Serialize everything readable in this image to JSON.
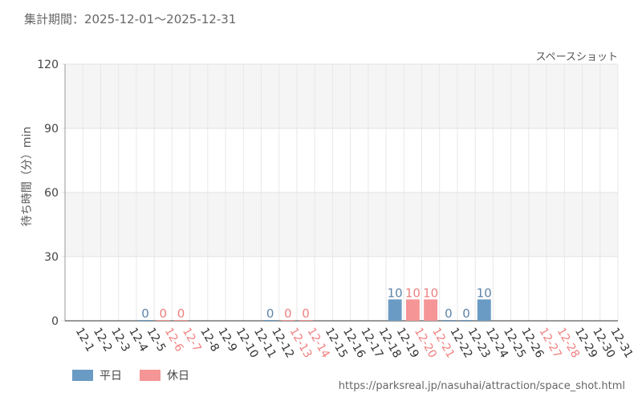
{
  "header": {
    "period": "集計期間：2025-12-01～2025-12-31"
  },
  "source_url": "https://parksreal.jp/nasuhai/attraction/space_shot.html",
  "colors": {
    "weekday": "#6a9bc4",
    "holiday": "#f59595",
    "weekday_label": "#5e84a8",
    "holiday_label": "#ef7f7f",
    "weekday_tick": "#333333",
    "holiday_tick": "#f08080"
  },
  "chart_data": {
    "type": "bar",
    "subtitle": "スペースショット",
    "ylabel": "待ち時間（分）min",
    "ylim": [
      0,
      120
    ],
    "yticks": [
      0,
      30,
      60,
      90,
      120
    ],
    "grid": true,
    "legend_position": "bottom-left",
    "legend": [
      {
        "key": "weekday",
        "label": "平日"
      },
      {
        "key": "holiday",
        "label": "休日"
      }
    ],
    "categories": [
      "12-1",
      "12-2",
      "12-3",
      "12-4",
      "12-5",
      "12-6",
      "12-7",
      "12-8",
      "12-9",
      "12-10",
      "12-11",
      "12-12",
      "12-13",
      "12-14",
      "12-15",
      "12-16",
      "12-17",
      "12-18",
      "12-19",
      "12-20",
      "12-21",
      "12-22",
      "12-23",
      "12-24",
      "12-25",
      "12-26",
      "12-27",
      "12-28",
      "12-29",
      "12-30",
      "12-31"
    ],
    "day_type": [
      "weekday",
      "weekday",
      "weekday",
      "weekday",
      "weekday",
      "holiday",
      "holiday",
      "weekday",
      "weekday",
      "weekday",
      "weekday",
      "weekday",
      "holiday",
      "holiday",
      "weekday",
      "weekday",
      "weekday",
      "weekday",
      "weekday",
      "holiday",
      "holiday",
      "weekday",
      "weekday",
      "weekday",
      "weekday",
      "weekday",
      "holiday",
      "holiday",
      "weekday",
      "weekday",
      "weekday"
    ],
    "values": [
      null,
      null,
      null,
      null,
      0,
      0,
      0,
      null,
      null,
      null,
      null,
      0,
      0,
      0,
      null,
      null,
      null,
      null,
      10,
      10,
      10,
      0,
      0,
      10,
      null,
      null,
      null,
      null,
      null,
      null,
      null
    ]
  }
}
